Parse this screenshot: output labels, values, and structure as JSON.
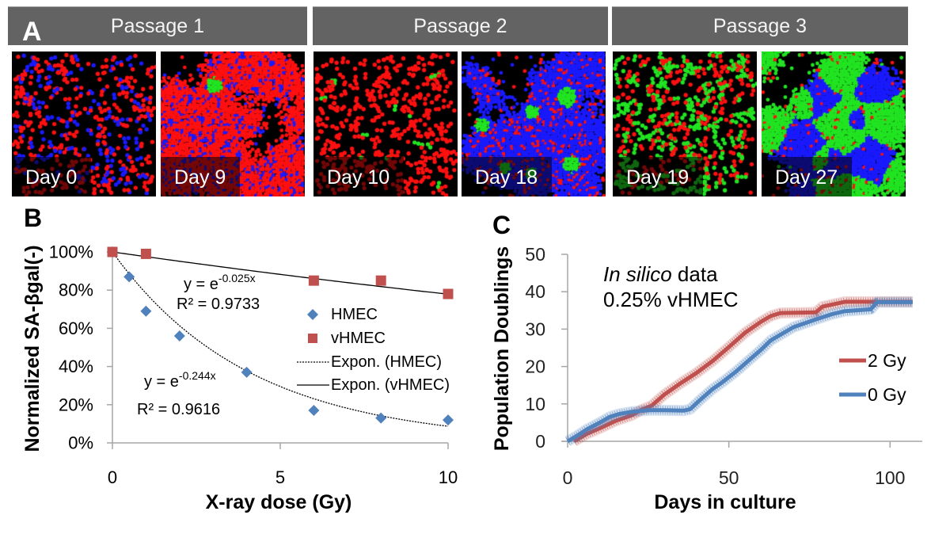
{
  "figure": {
    "panel_a": {
      "label": "A",
      "cell_colors": {
        "red": "#ff1010",
        "blue": "#1a1aff",
        "green": "#22e422",
        "background": "#000000"
      },
      "passages": [
        {
          "title": "Passage 1",
          "images": [
            {
              "day_label": "Day 0",
              "confluence": "sparse",
              "composition": {
                "red": 0.6,
                "blue": 0.397,
                "green": 0.003
              },
              "green_colonies": 1
            },
            {
              "day_label": "Day 9",
              "confluence": "dense",
              "composition": {
                "red": 0.8,
                "blue": 0.17,
                "green": 0.03
              },
              "green_colonies": 1
            }
          ]
        },
        {
          "title": "Passage 2",
          "images": [
            {
              "day_label": "Day 10",
              "confluence": "sparse",
              "composition": {
                "red": 0.985,
                "blue": 0.0,
                "green": 0.015
              },
              "green_colonies": 6
            },
            {
              "day_label": "Day 18",
              "confluence": "dense",
              "composition": {
                "red": 0.17,
                "blue": 0.78,
                "green": 0.05
              },
              "green_colonies": 6
            }
          ]
        },
        {
          "title": "Passage 3",
          "images": [
            {
              "day_label": "Day 19",
              "confluence": "sparse",
              "composition": {
                "red": 0.6,
                "blue": 0.0,
                "green": 0.4
              },
              "green_colonies": 0
            },
            {
              "day_label": "Day 27",
              "confluence": "dense",
              "composition": {
                "red": 0.05,
                "blue": 0.33,
                "green": 0.62
              },
              "green_colonies": 0
            }
          ]
        }
      ]
    },
    "panel_b": {
      "label": "B"
    },
    "panel_c": {
      "label": "C"
    }
  },
  "chart_data": [
    {
      "panel": "B",
      "type": "scatter",
      "title": "",
      "xlabel": "X-ray dose (Gy)",
      "ylabel": "Normalized SA-βgal(-)",
      "xlim": [
        0,
        10
      ],
      "ylim": [
        0,
        100
      ],
      "y_unit": "percent",
      "x_ticks": [
        0,
        5,
        10
      ],
      "x_tick_labels": [
        "0",
        "5",
        "10"
      ],
      "y_ticks": [
        0,
        20,
        40,
        60,
        80,
        100
      ],
      "y_tick_labels": [
        "0%",
        "20%",
        "40%",
        "60%",
        "80%",
        "100%"
      ],
      "grid": false,
      "legend": "center-right",
      "series": [
        {
          "name": "HMEC",
          "marker": "diamond",
          "color": "#4f81bd",
          "x": [
            0,
            0.5,
            1,
            2,
            4,
            6,
            8,
            10
          ],
          "y": [
            100,
            87,
            69,
            56,
            37,
            17,
            13,
            12
          ]
        },
        {
          "name": "vHMEC",
          "marker": "square",
          "color": "#c0504d",
          "x": [
            0,
            1,
            6,
            8,
            10
          ],
          "y": [
            100,
            99,
            85,
            85,
            78
          ]
        }
      ],
      "trendlines": [
        {
          "name": "Expon. (HMEC)",
          "fits": "HMEC",
          "style": "dotted",
          "color": "#000000",
          "k": -0.244,
          "equation_base": "y = e",
          "equation_exponent": "-0.244x",
          "r2_label": "R² = 0.9616",
          "r2": 0.9616
        },
        {
          "name": "Expon. (vHMEC)",
          "fits": "vHMEC",
          "style": "solid",
          "color": "#000000",
          "k": -0.025,
          "equation_base": "y = e",
          "equation_exponent": "-0.025x",
          "r2_label": "R² = 0.9733",
          "r2": 0.9733
        }
      ]
    },
    {
      "panel": "C",
      "type": "line",
      "title": "",
      "xlabel": "Days in culture",
      "ylabel": "Population Doublings",
      "xlim": [
        0,
        110
      ],
      "ylim": [
        0,
        50
      ],
      "x_ticks": [
        0,
        50,
        100
      ],
      "x_tick_labels": [
        "0",
        "50",
        "100"
      ],
      "y_ticks": [
        0,
        10,
        20,
        30,
        40,
        50
      ],
      "y_tick_labels": [
        "0",
        "10",
        "20",
        "30",
        "40",
        "50"
      ],
      "grid": false,
      "legend": "right",
      "annotation": {
        "line1_italic": "In silico",
        "line1_rest": " data",
        "line2": "0.25% vHMEC"
      },
      "series": [
        {
          "name": "2 Gy",
          "color": "#c0504d",
          "x": [
            2,
            6,
            10,
            15,
            20,
            23,
            26,
            30,
            35,
            40,
            45,
            50,
            55,
            60,
            63,
            66,
            77,
            79,
            86,
            95,
            107
          ],
          "y": [
            0,
            2,
            3.5,
            5.5,
            7,
            8.5,
            9.5,
            12.5,
            15.5,
            18.3,
            21.5,
            25.2,
            29,
            32,
            33.5,
            34.3,
            34.5,
            36,
            37.3,
            37.3,
            37.3
          ]
        },
        {
          "name": "0 Gy",
          "color": "#4f81bd",
          "x": [
            0,
            3,
            6,
            10,
            13,
            16,
            20,
            25,
            30,
            36,
            38,
            41,
            45,
            48,
            52,
            56,
            60,
            63,
            70,
            77,
            82,
            86,
            94,
            96,
            107
          ],
          "y": [
            0,
            1.5,
            3.2,
            5,
            6.5,
            7.3,
            7.9,
            8.3,
            8.3,
            8.2,
            8.6,
            11,
            14,
            15.8,
            18.5,
            21.5,
            24.5,
            27,
            30.5,
            32.6,
            34,
            34.8,
            35.3,
            37.2,
            37.2
          ]
        }
      ]
    }
  ]
}
